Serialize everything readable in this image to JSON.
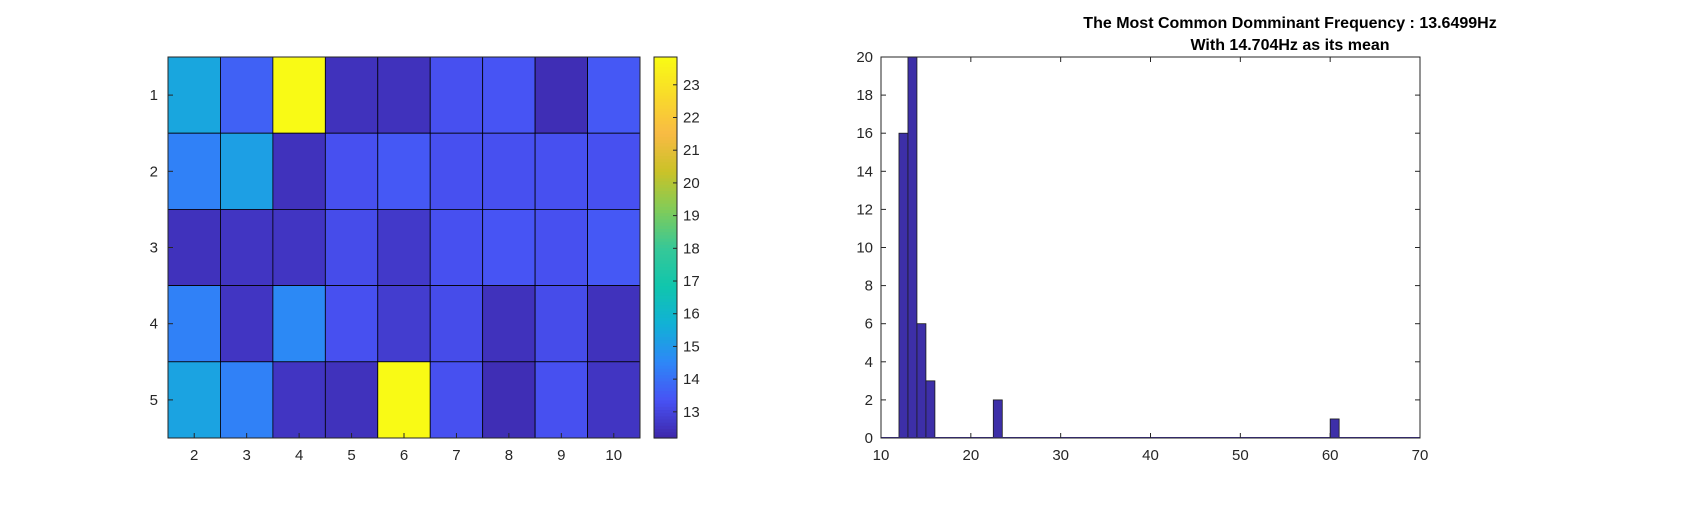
{
  "chart_data": [
    {
      "type": "heatmap",
      "title": "",
      "xlabel": "",
      "ylabel": "",
      "x_categories": [
        "2",
        "3",
        "4",
        "5",
        "6",
        "7",
        "8",
        "9",
        "10"
      ],
      "y_categories": [
        "1",
        "2",
        "3",
        "4",
        "5"
      ],
      "values": [
        [
          15.4,
          13.7,
          23.8,
          12.5,
          12.5,
          13.3,
          13.4,
          12.4,
          13.5
        ],
        [
          14.4,
          15.2,
          12.5,
          13.3,
          13.5,
          13.3,
          13.3,
          13.3,
          13.3
        ],
        [
          12.5,
          12.6,
          12.6,
          13.2,
          12.7,
          13.3,
          13.4,
          13.3,
          13.5
        ],
        [
          14.4,
          12.6,
          14.6,
          13.3,
          12.8,
          13.2,
          12.5,
          13.2,
          12.5
        ],
        [
          15.3,
          14.4,
          12.6,
          12.5,
          23.8,
          13.3,
          12.4,
          13.3,
          12.6
        ]
      ],
      "colorbar": {
        "min": 12.2,
        "max": 23.85,
        "ticks": [
          "13",
          "14",
          "15",
          "16",
          "17",
          "18",
          "19",
          "20",
          "21",
          "22",
          "23"
        ],
        "colormap": "parula"
      }
    },
    {
      "type": "bar",
      "subtype": "histogram",
      "title_lines": [
        "The Most Common Domminant Frequency : 13.6499Hz",
        "With 14.704Hz as its mean"
      ],
      "xlabel": "",
      "ylabel": "",
      "xlim": [
        10,
        70
      ],
      "ylim": [
        0,
        20
      ],
      "x_ticks": [
        "10",
        "20",
        "30",
        "40",
        "50",
        "60",
        "70"
      ],
      "y_ticks": [
        "0",
        "2",
        "4",
        "6",
        "8",
        "10",
        "12",
        "14",
        "16",
        "18",
        "20"
      ],
      "bin_width": 1.0,
      "bins": [
        {
          "x": 12.5,
          "count": 16
        },
        {
          "x": 13.5,
          "count": 20
        },
        {
          "x": 14.5,
          "count": 6
        },
        {
          "x": 15.5,
          "count": 3
        },
        {
          "x": 23.0,
          "count": 2
        },
        {
          "x": 60.5,
          "count": 1
        }
      ],
      "bar_color": "#3d2fa8"
    }
  ]
}
